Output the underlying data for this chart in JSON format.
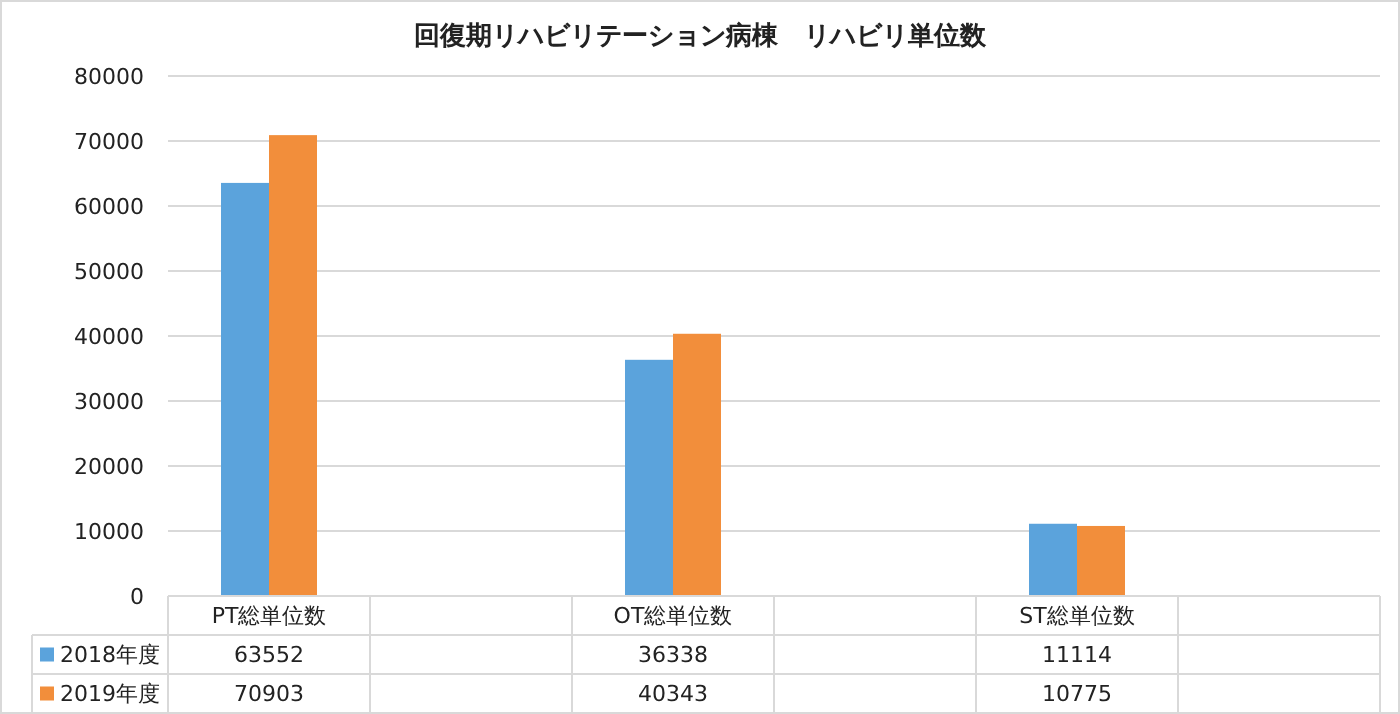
{
  "chart_data": {
    "type": "bar",
    "title": "回復期リハビリテーション病棟　リハビリ単位数",
    "categories": [
      "PT総単位数",
      null,
      "OT総単位数",
      null,
      "ST総単位数",
      null
    ],
    "series": [
      {
        "name": "2018年度",
        "color": "#5ba3dc",
        "values": [
          63552,
          null,
          36338,
          null,
          11114,
          null
        ]
      },
      {
        "name": "2019年度",
        "color": "#f28e3b",
        "values": [
          70903,
          null,
          40343,
          null,
          10775,
          null
        ]
      }
    ],
    "ylim": [
      0,
      80000
    ],
    "yticks": [
      0,
      10000,
      20000,
      30000,
      40000,
      50000,
      60000,
      70000,
      80000
    ],
    "grid": "y",
    "data_labels": true,
    "legend": "bottom"
  }
}
